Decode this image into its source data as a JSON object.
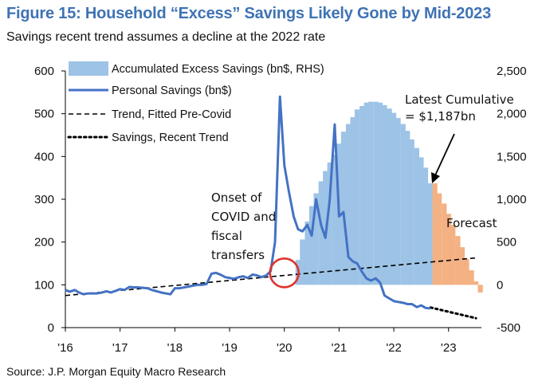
{
  "title": "Figure 15: Household “Excess” Savings Likely Gone by Mid-2023",
  "subtitle": "Savings recent trend assumes a decline at the 2022 rate",
  "source": "Source: J.P. Morgan Equity Macro Research",
  "colors": {
    "title": "#3f73b4",
    "savings_line": "#4472c4",
    "excess_bars": "#9dc3e6",
    "forecast_bars": "#f4b183",
    "trend": "#000000",
    "circle": "#e0322b"
  },
  "chart_data": {
    "type": "bar",
    "y_left": {
      "ylim": [
        0,
        600
      ],
      "ticks": [
        0,
        100,
        200,
        300,
        400,
        500,
        600
      ]
    },
    "y_right": {
      "ylim": [
        -500,
        2500
      ],
      "ticks": [
        "-500",
        "0",
        "500",
        "1,000",
        "1,500",
        "2,000",
        "2,500"
      ]
    },
    "x_ticks": [
      "'16",
      "'17",
      "'18",
      "'19",
      "'20",
      "'21",
      "'22",
      "'23"
    ],
    "x_range": [
      2016.0,
      2023.6
    ],
    "legend": {
      "placement": "top-left",
      "entries": [
        "Accumulated Excess Savings (bn$, RHS)",
        "Personal Savings (bn$)",
        "Trend, Fitted Pre-Covid",
        "Savings, Recent Trend"
      ]
    },
    "annotations": {
      "onset": [
        "Onset of",
        "COVID and",
        "fiscal",
        "transfers"
      ],
      "latest": [
        "Latest Cumulative",
        "= $1,187bn"
      ],
      "forecast": "Forecast"
    },
    "series": [
      {
        "name": "Accumulated Excess Savings (bn$, RHS)",
        "axis": "right",
        "style": "bar",
        "x": [
          2020.25,
          2020.33,
          2020.42,
          2020.5,
          2020.58,
          2020.67,
          2020.75,
          2020.83,
          2020.92,
          2021.0,
          2021.08,
          2021.17,
          2021.25,
          2021.33,
          2021.42,
          2021.5,
          2021.58,
          2021.67,
          2021.75,
          2021.83,
          2021.92,
          2022.0,
          2022.08,
          2022.17,
          2022.25,
          2022.33,
          2022.42,
          2022.5,
          2022.58,
          2022.67
        ],
        "values": [
          290,
          530,
          740,
          920,
          1070,
          1210,
          1330,
          1430,
          1520,
          1650,
          1790,
          1880,
          1960,
          2050,
          2090,
          2130,
          2140,
          2140,
          2130,
          2100,
          2060,
          2010,
          1950,
          1880,
          1800,
          1700,
          1600,
          1490,
          1370,
          1187
        ]
      },
      {
        "name": "Forecast",
        "axis": "right",
        "style": "bar",
        "x": [
          2022.75,
          2022.83,
          2022.92,
          2023.0,
          2023.08,
          2023.17,
          2023.25,
          2023.33,
          2023.42,
          2023.5,
          2023.58
        ],
        "values": [
          1187,
          1070,
          950,
          830,
          700,
          570,
          440,
          300,
          170,
          40,
          -90
        ]
      },
      {
        "name": "Personal Savings (bn$)",
        "axis": "left",
        "style": "line",
        "x": [
          2016.0,
          2016.08,
          2016.17,
          2016.25,
          2016.33,
          2016.42,
          2016.5,
          2016.58,
          2016.67,
          2016.75,
          2016.83,
          2016.92,
          2017.0,
          2017.08,
          2017.17,
          2017.25,
          2017.33,
          2017.42,
          2017.5,
          2017.58,
          2017.67,
          2017.75,
          2017.83,
          2017.92,
          2018.0,
          2018.08,
          2018.17,
          2018.25,
          2018.33,
          2018.42,
          2018.5,
          2018.58,
          2018.67,
          2018.75,
          2018.83,
          2018.92,
          2019.0,
          2019.08,
          2019.17,
          2019.25,
          2019.33,
          2019.42,
          2019.5,
          2019.58,
          2019.67,
          2019.75,
          2019.83,
          2019.92,
          2020.0,
          2020.08,
          2020.17,
          2020.25,
          2020.33,
          2020.42,
          2020.5,
          2020.58,
          2020.67,
          2020.75,
          2020.83,
          2020.92,
          2021.0,
          2021.08,
          2021.17,
          2021.25,
          2021.33,
          2021.42,
          2021.5,
          2021.58,
          2021.67,
          2021.75,
          2021.83,
          2021.92,
          2022.0,
          2022.08,
          2022.17,
          2022.25,
          2022.33,
          2022.42,
          2022.5,
          2022.58,
          2022.67
        ],
        "values": [
          88,
          84,
          88,
          82,
          78,
          80,
          80,
          80,
          82,
          85,
          82,
          86,
          90,
          88,
          95,
          94,
          94,
          93,
          92,
          88,
          85,
          82,
          80,
          78,
          92,
          92,
          94,
          96,
          98,
          100,
          100,
          102,
          126,
          128,
          124,
          118,
          116,
          114,
          118,
          120,
          116,
          124,
          122,
          118,
          122,
          132,
          200,
          540,
          380,
          320,
          260,
          230,
          225,
          240,
          215,
          300,
          240,
          210,
          300,
          475,
          260,
          270,
          165,
          155,
          150,
          130,
          115,
          110,
          115,
          105,
          75,
          68,
          62,
          60,
          58,
          55,
          55,
          48,
          52,
          46,
          45
        ]
      },
      {
        "name": "Trend, Fitted Pre-Covid",
        "axis": "left",
        "style": "dashed",
        "x": [
          2016.0,
          2023.5
        ],
        "values": [
          75,
          163
        ]
      },
      {
        "name": "Savings, Recent Trend",
        "axis": "left",
        "style": "dotted",
        "x": [
          2022.67,
          2023.5
        ],
        "values": [
          47,
          22
        ]
      }
    ]
  }
}
